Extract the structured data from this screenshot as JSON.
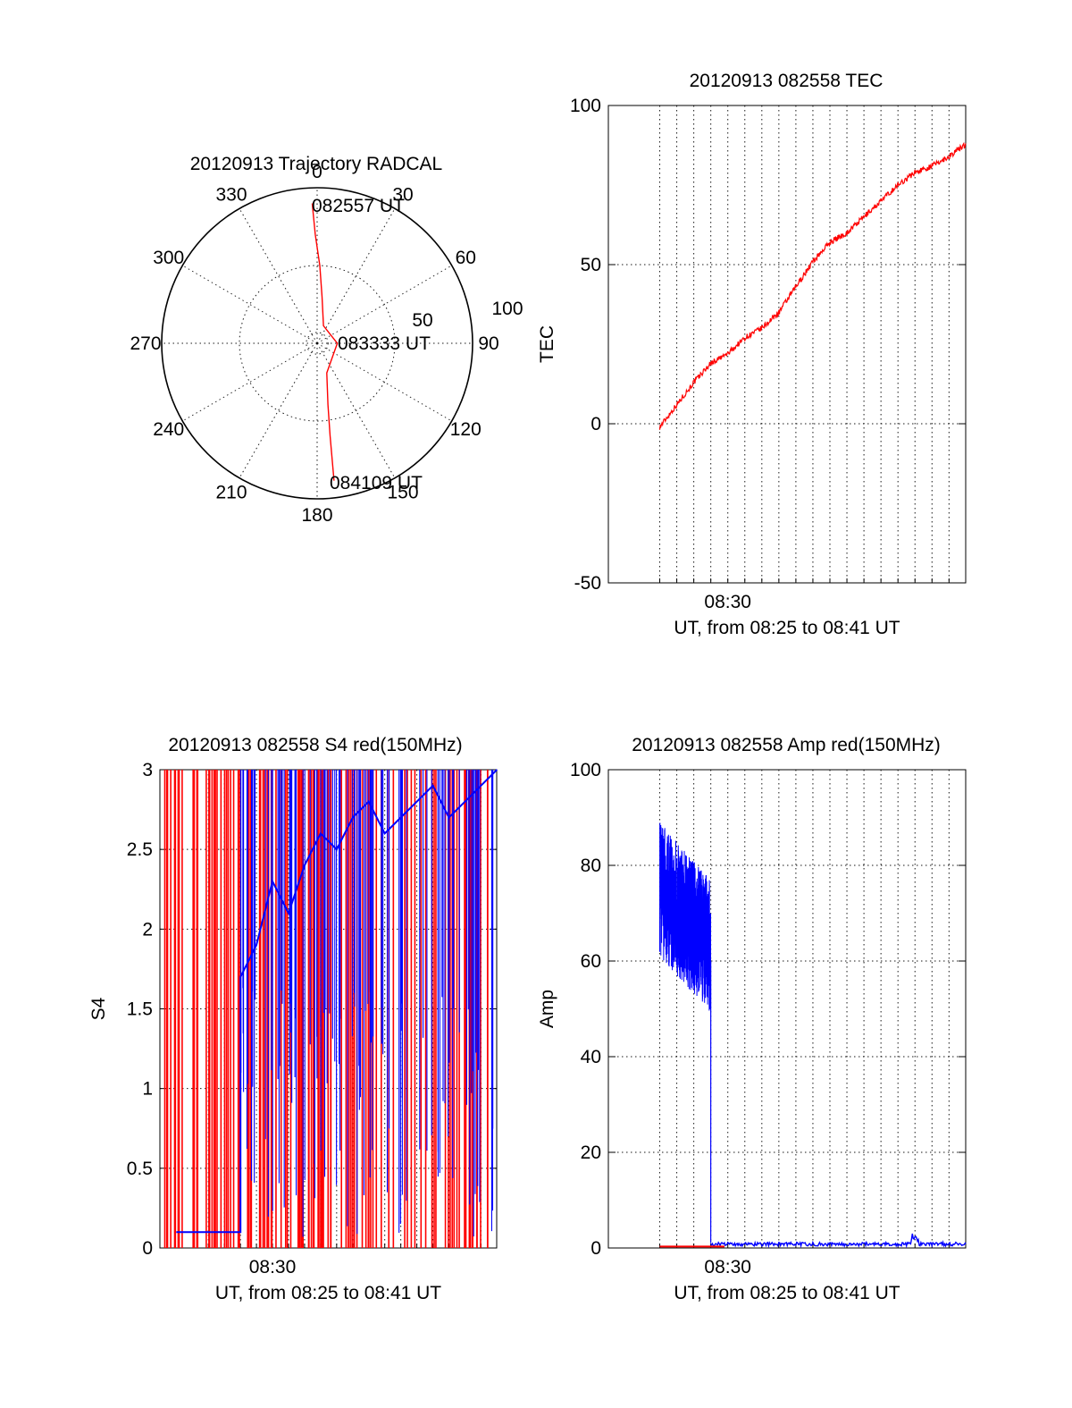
{
  "colors": {
    "red": "#ff0000",
    "blue": "#0000ff",
    "axis": "#000000"
  },
  "chart_data": [
    {
      "id": "trajectory",
      "type": "scatter",
      "projection": "polar",
      "title": "20120913 Trajectory RADCAL",
      "angle_labels": [
        "0",
        "30",
        "60",
        "90",
        "120",
        "150",
        "180",
        "210",
        "240",
        "270",
        "300",
        "330"
      ],
      "radius_labels": [
        "50",
        "100"
      ],
      "radius_max": 100,
      "series": [
        {
          "color": "#ff0000",
          "points": [
            {
              "az": 358,
              "zen": 90
            },
            {
              "az": 359,
              "zen": 70
            },
            {
              "az": 2,
              "zen": 50
            },
            {
              "az": 6,
              "zen": 30
            },
            {
              "az": 20,
              "zen": 12
            },
            {
              "az": 90,
              "zen": 13
            },
            {
              "az": 162,
              "zen": 20
            },
            {
              "az": 170,
              "zen": 40
            },
            {
              "az": 172,
              "zen": 60
            },
            {
              "az": 173,
              "zen": 89
            }
          ]
        }
      ],
      "annotations": [
        "082557 UT",
        "083333 UT",
        "084109 UT"
      ]
    },
    {
      "id": "tec",
      "type": "line",
      "title": "20120913 082558 TEC",
      "ylabel": "TEC",
      "xlabel": "UT, from 08:25 to 08:41 UT",
      "xlim": [
        8.383,
        8.733
      ],
      "ylim": [
        -50,
        100
      ],
      "yticks": [
        "-50",
        "0",
        "50",
        "100"
      ],
      "xtick_labels": [
        {
          "x": 8.5,
          "label": "08:30"
        }
      ],
      "series": [
        {
          "color": "#ff0000",
          "x": [
            8.4333,
            8.45,
            8.4667,
            8.4833,
            8.5,
            8.5167,
            8.5333,
            8.55,
            8.5667,
            8.5833,
            8.6,
            8.6167,
            8.6333,
            8.65,
            8.6667,
            8.6833,
            8.7,
            8.7167,
            8.7333
          ],
          "y": [
            -1,
            6,
            13,
            19,
            22,
            27,
            30,
            35,
            43,
            51,
            57,
            60,
            65,
            70,
            75,
            79,
            81,
            84,
            88
          ]
        }
      ]
    },
    {
      "id": "s4",
      "type": "line",
      "title": "20120913 082558 S4 red(150MHz)",
      "ylabel": "S4",
      "xlabel": "UT, from 08:25 to 08:41 UT",
      "xlim": [
        8.383,
        8.733
      ],
      "ylim": [
        0,
        3
      ],
      "yticks": [
        "0",
        "0.5",
        "1",
        "1.5",
        "2",
        "2.5",
        "3"
      ],
      "xtick_labels": [
        {
          "x": 8.5,
          "label": "08:30"
        }
      ],
      "series": [
        {
          "color": "#0000ff",
          "x": [
            8.4,
            8.45,
            8.4667,
            8.4667,
            8.4833,
            8.5,
            8.5167,
            8.5333,
            8.55,
            8.5667,
            8.5833,
            8.6,
            8.6167,
            8.6333,
            8.65,
            8.6667,
            8.6833,
            8.7,
            8.7167,
            8.7333
          ],
          "y": [
            0.1,
            0.1,
            0.1,
            1.7,
            1.9,
            2.3,
            2.1,
            2.4,
            2.6,
            2.5,
            2.7,
            2.8,
            2.6,
            2.7,
            2.8,
            2.9,
            2.7,
            2.8,
            2.9,
            3.0
          ]
        }
      ]
    },
    {
      "id": "amp",
      "type": "line",
      "title": "20120913 082558 Amp red(150MHz)",
      "ylabel": "Amp",
      "xlabel": "UT, from 08:25 to 08:41 UT",
      "xlim": [
        8.383,
        8.733
      ],
      "ylim": [
        0,
        100
      ],
      "yticks": [
        "0",
        "20",
        "40",
        "60",
        "80",
        "100"
      ],
      "xtick_labels": [
        {
          "x": 8.5,
          "label": "08:30"
        }
      ],
      "series": [
        {
          "color": "#0000ff",
          "x": [
            8.4333,
            8.45,
            8.4667,
            8.4833,
            8.5,
            8.5167,
            8.5333,
            8.55,
            8.5667,
            8.5833,
            8.6,
            8.6167,
            8.6333,
            8.65,
            8.6667,
            8.6833,
            8.7,
            8.7167,
            8.7333
          ],
          "y": [
            75,
            72,
            68,
            63,
            0.8,
            0.8,
            0.8,
            0.8,
            0.8,
            0.8,
            0.8,
            0.8,
            0.8,
            0.8,
            0.8,
            0.8,
            0.8,
            0.8,
            0.8
          ]
        },
        {
          "color": "#ff0000",
          "x": [
            8.4333,
            8.45,
            8.4667,
            8.4833,
            8.4967
          ],
          "y": [
            0.3,
            0.3,
            0.3,
            0.3,
            0.3
          ]
        }
      ]
    }
  ]
}
